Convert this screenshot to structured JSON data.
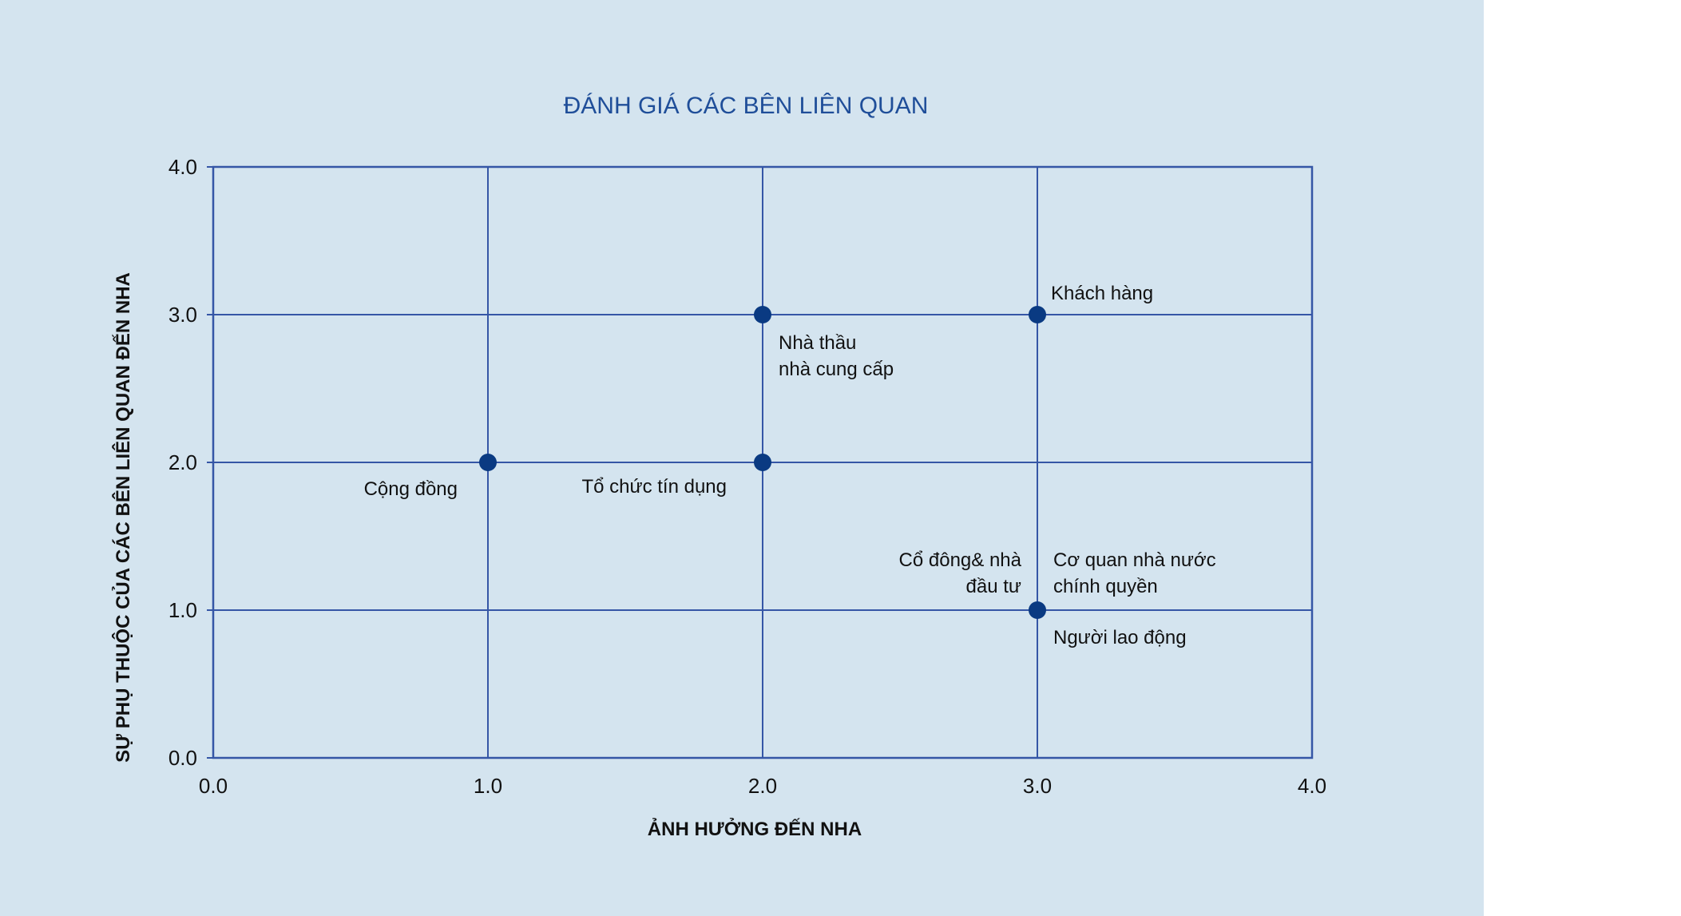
{
  "chart_data": {
    "type": "scatter",
    "title": "ĐÁNH GIÁ CÁC BÊN LIÊN QUAN",
    "xlabel": "ẢNH HƯỞNG ĐẾN NHA",
    "ylabel": "SỰ PHỤ THUỘC CỦA CÁC BÊN LIÊN QUAN ĐẾN NHA",
    "xlim": [
      0,
      4
    ],
    "ylim": [
      0,
      4
    ],
    "x_ticks": [
      "0.0",
      "1.0",
      "2.0",
      "3.0",
      "4.0"
    ],
    "y_ticks": [
      "0.0",
      "1.0",
      "2.0",
      "3.0",
      "4.0"
    ],
    "grid": true,
    "colors": {
      "points": "#0a3a82",
      "grid": "#3556a6",
      "title": "#1f4e99",
      "background": "#d4e4ef"
    },
    "points": [
      {
        "x": 3.0,
        "y": 3.0,
        "label": [
          "Khách hàng"
        ]
      },
      {
        "x": 2.0,
        "y": 3.0,
        "label": [
          "Nhà thầu",
          "nhà cung cấp"
        ]
      },
      {
        "x": 1.0,
        "y": 2.0,
        "label": [
          "Cộng đồng"
        ]
      },
      {
        "x": 2.0,
        "y": 2.0,
        "label": [
          "Tổ chức tín dụng"
        ]
      },
      {
        "x": 3.0,
        "y": 1.0,
        "label": [
          "Cổ đông& nhà",
          "đầu tư"
        ]
      },
      {
        "x": 3.0,
        "y": 1.0,
        "label": [
          "Cơ quan nhà nước",
          "chính quyền"
        ]
      },
      {
        "x": 3.0,
        "y": 1.0,
        "label": [
          "Người lao động"
        ]
      }
    ]
  }
}
